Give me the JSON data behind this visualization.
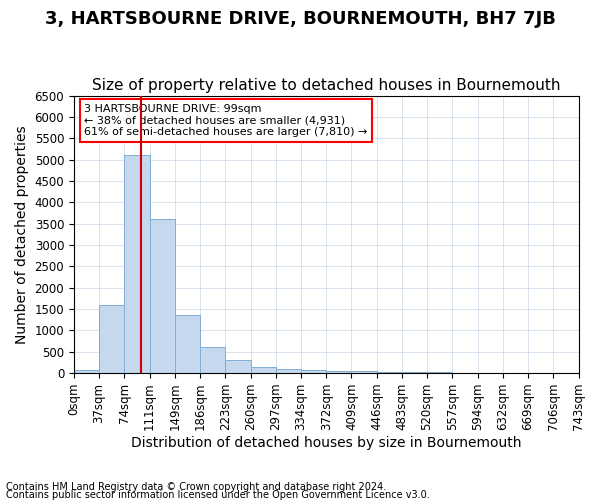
{
  "title": "3, HARTSBOURNE DRIVE, BOURNEMOUTH, BH7 7JB",
  "subtitle": "Size of property relative to detached houses in Bournemouth",
  "xlabel": "Distribution of detached houses by size in Bournemouth",
  "ylabel": "Number of detached properties",
  "footnote1": "Contains HM Land Registry data © Crown copyright and database right 2024.",
  "footnote2": "Contains public sector information licensed under the Open Government Licence v3.0.",
  "bin_labels": [
    "0sqm",
    "37sqm",
    "74sqm",
    "111sqm",
    "149sqm",
    "186sqm",
    "223sqm",
    "260sqm",
    "297sqm",
    "334sqm",
    "372sqm",
    "409sqm",
    "446sqm",
    "483sqm",
    "520sqm",
    "557sqm",
    "594sqm",
    "632sqm",
    "669sqm",
    "706sqm",
    "743sqm"
  ],
  "bar_values": [
    75,
    1600,
    5100,
    3600,
    1350,
    600,
    300,
    150,
    100,
    80,
    60,
    40,
    30,
    20,
    15,
    10,
    8,
    6,
    5,
    4
  ],
  "bar_color": "#c5d8ed",
  "bar_edge_color": "#7faed4",
  "grid_color": "#c8d8e8",
  "property_line_bin": 2.67,
  "annotation_title": "3 HARTSBOURNE DRIVE: 99sqm",
  "annotation_line1": "← 38% of detached houses are smaller (4,931)",
  "annotation_line2": "61% of semi-detached houses are larger (7,810) →",
  "annotation_box_color": "red",
  "ylim": [
    0,
    6500
  ],
  "yticks": [
    0,
    500,
    1000,
    1500,
    2000,
    2500,
    3000,
    3500,
    4000,
    4500,
    5000,
    5500,
    6000,
    6500
  ],
  "red_line_color": "#cc0000",
  "title_fontsize": 13,
  "subtitle_fontsize": 11,
  "axis_fontsize": 10,
  "tick_fontsize": 8.5
}
